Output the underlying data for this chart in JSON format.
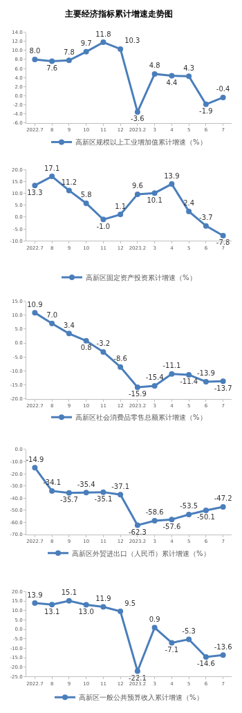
{
  "chart_data": [
    {
      "type": "line",
      "title": "主要经济指标累计增速走势图",
      "categories": [
        "2022.7",
        "8",
        "9",
        "10",
        "11",
        "12",
        "2023.2",
        "3",
        "4",
        "5",
        "6",
        "7"
      ],
      "series": [
        {
          "name": "高新区规模以上工业增加值累计增速（%）",
          "color": "#4a7ebb",
          "values": [
            8.0,
            7.6,
            7.8,
            9.7,
            11.8,
            10.3,
            -3.6,
            4.8,
            4.4,
            4.3,
            -1.9,
            -0.4
          ],
          "value_labels": [
            "8.0",
            "7.6",
            "7.8",
            "9.7",
            "11.8",
            "10.3",
            "-3.6",
            "4.8",
            "4.4",
            "4.3",
            "-1.9",
            "-0.4"
          ]
        }
      ],
      "ylim": [
        -6,
        14
      ],
      "yticks": [
        {
          "value": -6,
          "label": "-6.0"
        },
        {
          "value": -4,
          "label": "-4.0"
        },
        {
          "value": -2,
          "label": "-2.0"
        },
        {
          "value": 0,
          "label": "0.0"
        },
        {
          "value": 2,
          "label": "2.0"
        },
        {
          "value": 4,
          "label": "4.0"
        },
        {
          "value": 6,
          "label": "6.0"
        },
        {
          "value": 8,
          "label": "8.0"
        },
        {
          "value": 10,
          "label": "10.0"
        },
        {
          "value": 12,
          "label": "12.0"
        },
        {
          "value": 14,
          "label": "14.0"
        }
      ],
      "grid": false,
      "legend": "bottom",
      "marker": "circle",
      "line_style": "solid"
    },
    {
      "type": "line",
      "categories": [
        "2022.7",
        "8",
        "9",
        "10",
        "11",
        "12",
        "2023.2",
        "3",
        "4",
        "5",
        "6",
        "7"
      ],
      "series": [
        {
          "name": "高新区固定资产投资累计增速（%）",
          "color": "#4a7ebb",
          "values": [
            13.3,
            17.1,
            11.2,
            5.8,
            -1.0,
            1.1,
            9.6,
            10.1,
            13.9,
            2.4,
            -3.7,
            -7.8
          ],
          "value_labels": [
            "13.3",
            "17.1",
            "11.2",
            "5.8",
            "-1.0",
            "1.1",
            "9.6",
            "10.1",
            "13.9",
            "2.4",
            "-3.7",
            "-7.8"
          ]
        }
      ],
      "ylim": [
        -10,
        20
      ],
      "yticks": [
        {
          "value": -10,
          "label": "-10.0"
        },
        {
          "value": -5,
          "label": "-5.0"
        },
        {
          "value": 0,
          "label": "0.0"
        },
        {
          "value": 5,
          "label": "5.0"
        },
        {
          "value": 10,
          "label": "10.0"
        },
        {
          "value": 15,
          "label": "15.0"
        },
        {
          "value": 20,
          "label": "20.0"
        }
      ],
      "grid": false,
      "legend": "bottom",
      "marker": "circle",
      "line_style": "solid"
    },
    {
      "type": "line",
      "categories": [
        "2022.7",
        "8",
        "9",
        "10",
        "11",
        "12",
        "2023.2",
        "3",
        "4",
        "5",
        "6",
        "7"
      ],
      "series": [
        {
          "name": "高新区社会消费品零售总额累计增速（%）",
          "color": "#4a7ebb",
          "values": [
            10.9,
            7.0,
            3.4,
            0.8,
            -3.2,
            -8.6,
            -15.9,
            -15.4,
            -11.1,
            -11.4,
            -13.9,
            -13.7
          ],
          "value_labels": [
            "10.9",
            "7.0",
            "3.4",
            "0.8",
            "-3.2",
            "-8.6",
            "-15.9",
            "-15.4",
            "-11.1",
            "-11.4",
            "-13.9",
            "-13.7"
          ]
        }
      ],
      "ylim": [
        -20,
        15
      ],
      "yticks": [
        {
          "value": -20,
          "label": "-20.0"
        },
        {
          "value": -15,
          "label": "-15.0"
        },
        {
          "value": -10,
          "label": "-10.0"
        },
        {
          "value": -5,
          "label": "-5.0"
        },
        {
          "value": 0,
          "label": "0.0"
        },
        {
          "value": 5,
          "label": "5.0"
        },
        {
          "value": 10,
          "label": "10.0"
        },
        {
          "value": 15,
          "label": "15.0"
        }
      ],
      "grid": false,
      "legend": "bottom",
      "marker": "circle",
      "line_style": "solid"
    },
    {
      "type": "line",
      "categories": [
        "2022.7",
        "8",
        "9",
        "10",
        "11",
        "12",
        "2023.2",
        "3",
        "4",
        "5",
        "6",
        "7"
      ],
      "series": [
        {
          "name": "高新区外贸进出口（人民币）累计增速（%）",
          "color": "#4a7ebb",
          "values": [
            -14.9,
            -34.1,
            -35.7,
            -35.4,
            -35.1,
            -37.1,
            -62.3,
            -58.6,
            -57.6,
            -53.5,
            -50.1,
            -47.2
          ],
          "value_labels": [
            "-14.9",
            "-34.1",
            "-35.7",
            "-35.4",
            "-35.1",
            "-37.1",
            "-62.3",
            "-58.6",
            "-57.6",
            "-53.5",
            "-50.1",
            "-47.2"
          ]
        }
      ],
      "ylim": [
        -70,
        0
      ],
      "yticks": [
        {
          "value": -70,
          "label": "-70.0"
        },
        {
          "value": -60,
          "label": "-60.0"
        },
        {
          "value": -50,
          "label": "-50.0"
        },
        {
          "value": -40,
          "label": "-40.0"
        },
        {
          "value": -30,
          "label": "-30.0"
        },
        {
          "value": -20,
          "label": "-20.0"
        },
        {
          "value": -10,
          "label": "-10.0"
        },
        {
          "value": 0,
          "label": "0.0"
        }
      ],
      "grid": false,
      "legend": "bottom",
      "marker": "circle",
      "line_style": "solid"
    },
    {
      "type": "line",
      "categories": [
        "2022.7",
        "8",
        "9",
        "10",
        "11",
        "12",
        "2023.2",
        "3",
        "4",
        "5",
        "6",
        "7"
      ],
      "series": [
        {
          "name": "高新区一般公共预算收入累计增速（%）",
          "color": "#4a7ebb",
          "values": [
            13.9,
            13.1,
            15.1,
            13.0,
            11.9,
            9.5,
            -22.1,
            0.9,
            -7.1,
            -5.3,
            -14.6,
            -13.6
          ],
          "value_labels": [
            "13.9",
            "13.1",
            "15.1",
            "13.0",
            "11.9",
            "9.5",
            "-22.1",
            "0.9",
            "-7.1",
            "-5.3",
            "-14.6",
            "-13.6"
          ]
        }
      ],
      "ylim": [
        -25,
        20
      ],
      "yticks": [
        {
          "value": -25,
          "label": "-25.0"
        },
        {
          "value": -20,
          "label": "-20.0"
        },
        {
          "value": -15,
          "label": "-15.0"
        },
        {
          "value": -10,
          "label": "-10.0"
        },
        {
          "value": -5,
          "label": "-5.0"
        },
        {
          "value": 0,
          "label": "0.0"
        },
        {
          "value": 5,
          "label": "5.0"
        },
        {
          "value": 10,
          "label": "10.0"
        },
        {
          "value": 15,
          "label": "15.0"
        },
        {
          "value": 20,
          "label": "20.0"
        }
      ],
      "grid": false,
      "legend": "bottom",
      "marker": "circle",
      "line_style": "solid"
    }
  ]
}
